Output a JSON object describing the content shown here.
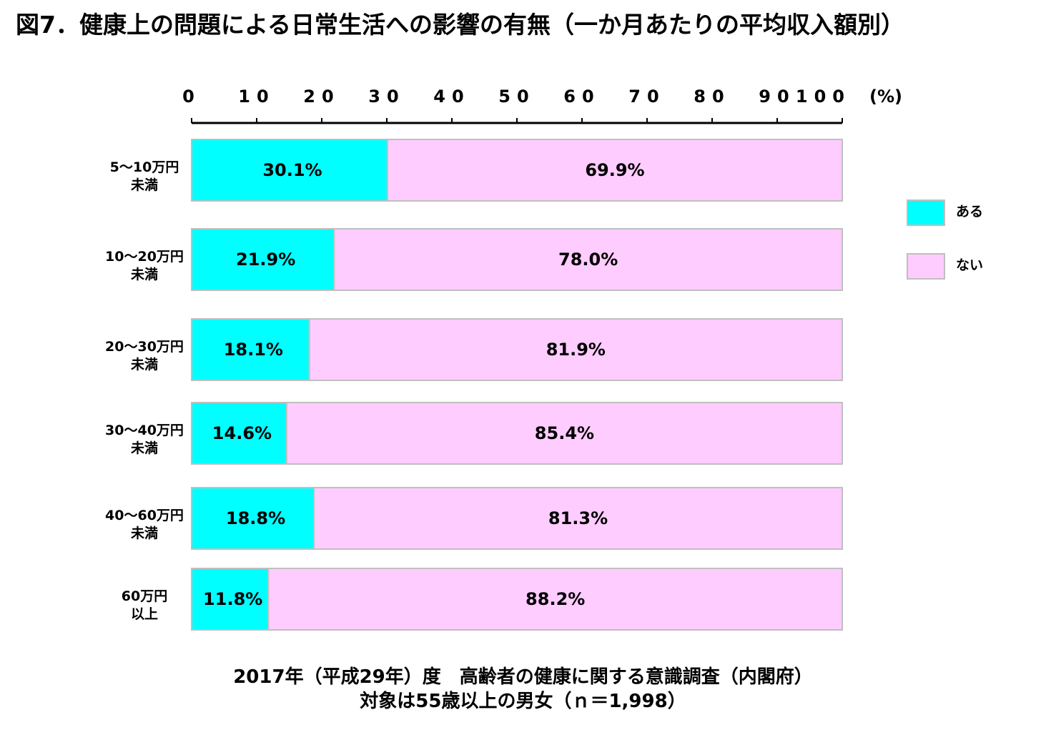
{
  "title": "図7．健康上の問題による日常生活への影響の有無（一か月あたりの平均収入額別）",
  "source_line1": "2017年（平成29年）度　高齢者の健康に関する意識調査（内閣府）",
  "source_line2": "対象は55歳以上の男女（ｎ＝1,998）",
  "colors": {
    "aru": "#00FFFF",
    "nai": "#FFCCFF",
    "border": "#BFBFBF"
  },
  "chart_data": {
    "type": "bar",
    "orientation": "horizontal",
    "stacked": true,
    "percent_stacked": true,
    "xlim": [
      0,
      100
    ],
    "x_ticks": [
      "0",
      "10",
      "20",
      "30",
      "40",
      "50",
      "60",
      "70",
      "80",
      "90",
      "100"
    ],
    "x_unit_label": "(%)",
    "axis_position": "top",
    "grid": false,
    "legend_position": "right",
    "categories": [
      [
        "5〜10万円",
        "未満"
      ],
      [
        "10〜20万円",
        "未満"
      ],
      [
        "20〜30万円",
        "未満"
      ],
      [
        "30〜40万円",
        "未満"
      ],
      [
        "40〜60万円",
        "未満"
      ],
      [
        "60万円",
        "以上"
      ]
    ],
    "series": [
      {
        "name": "ある",
        "values": [
          30.1,
          21.9,
          18.1,
          14.6,
          18.8,
          11.8
        ],
        "labels": [
          "30.1%",
          "21.9%",
          "18.1%",
          "14.6%",
          "18.8%",
          "11.8%"
        ]
      },
      {
        "name": "ない",
        "values": [
          69.9,
          78.0,
          81.9,
          85.4,
          81.3,
          88.2
        ],
        "labels": [
          "69.9%",
          "78.0%",
          "81.9%",
          "85.4%",
          "81.3%",
          "88.2%"
        ]
      }
    ]
  }
}
